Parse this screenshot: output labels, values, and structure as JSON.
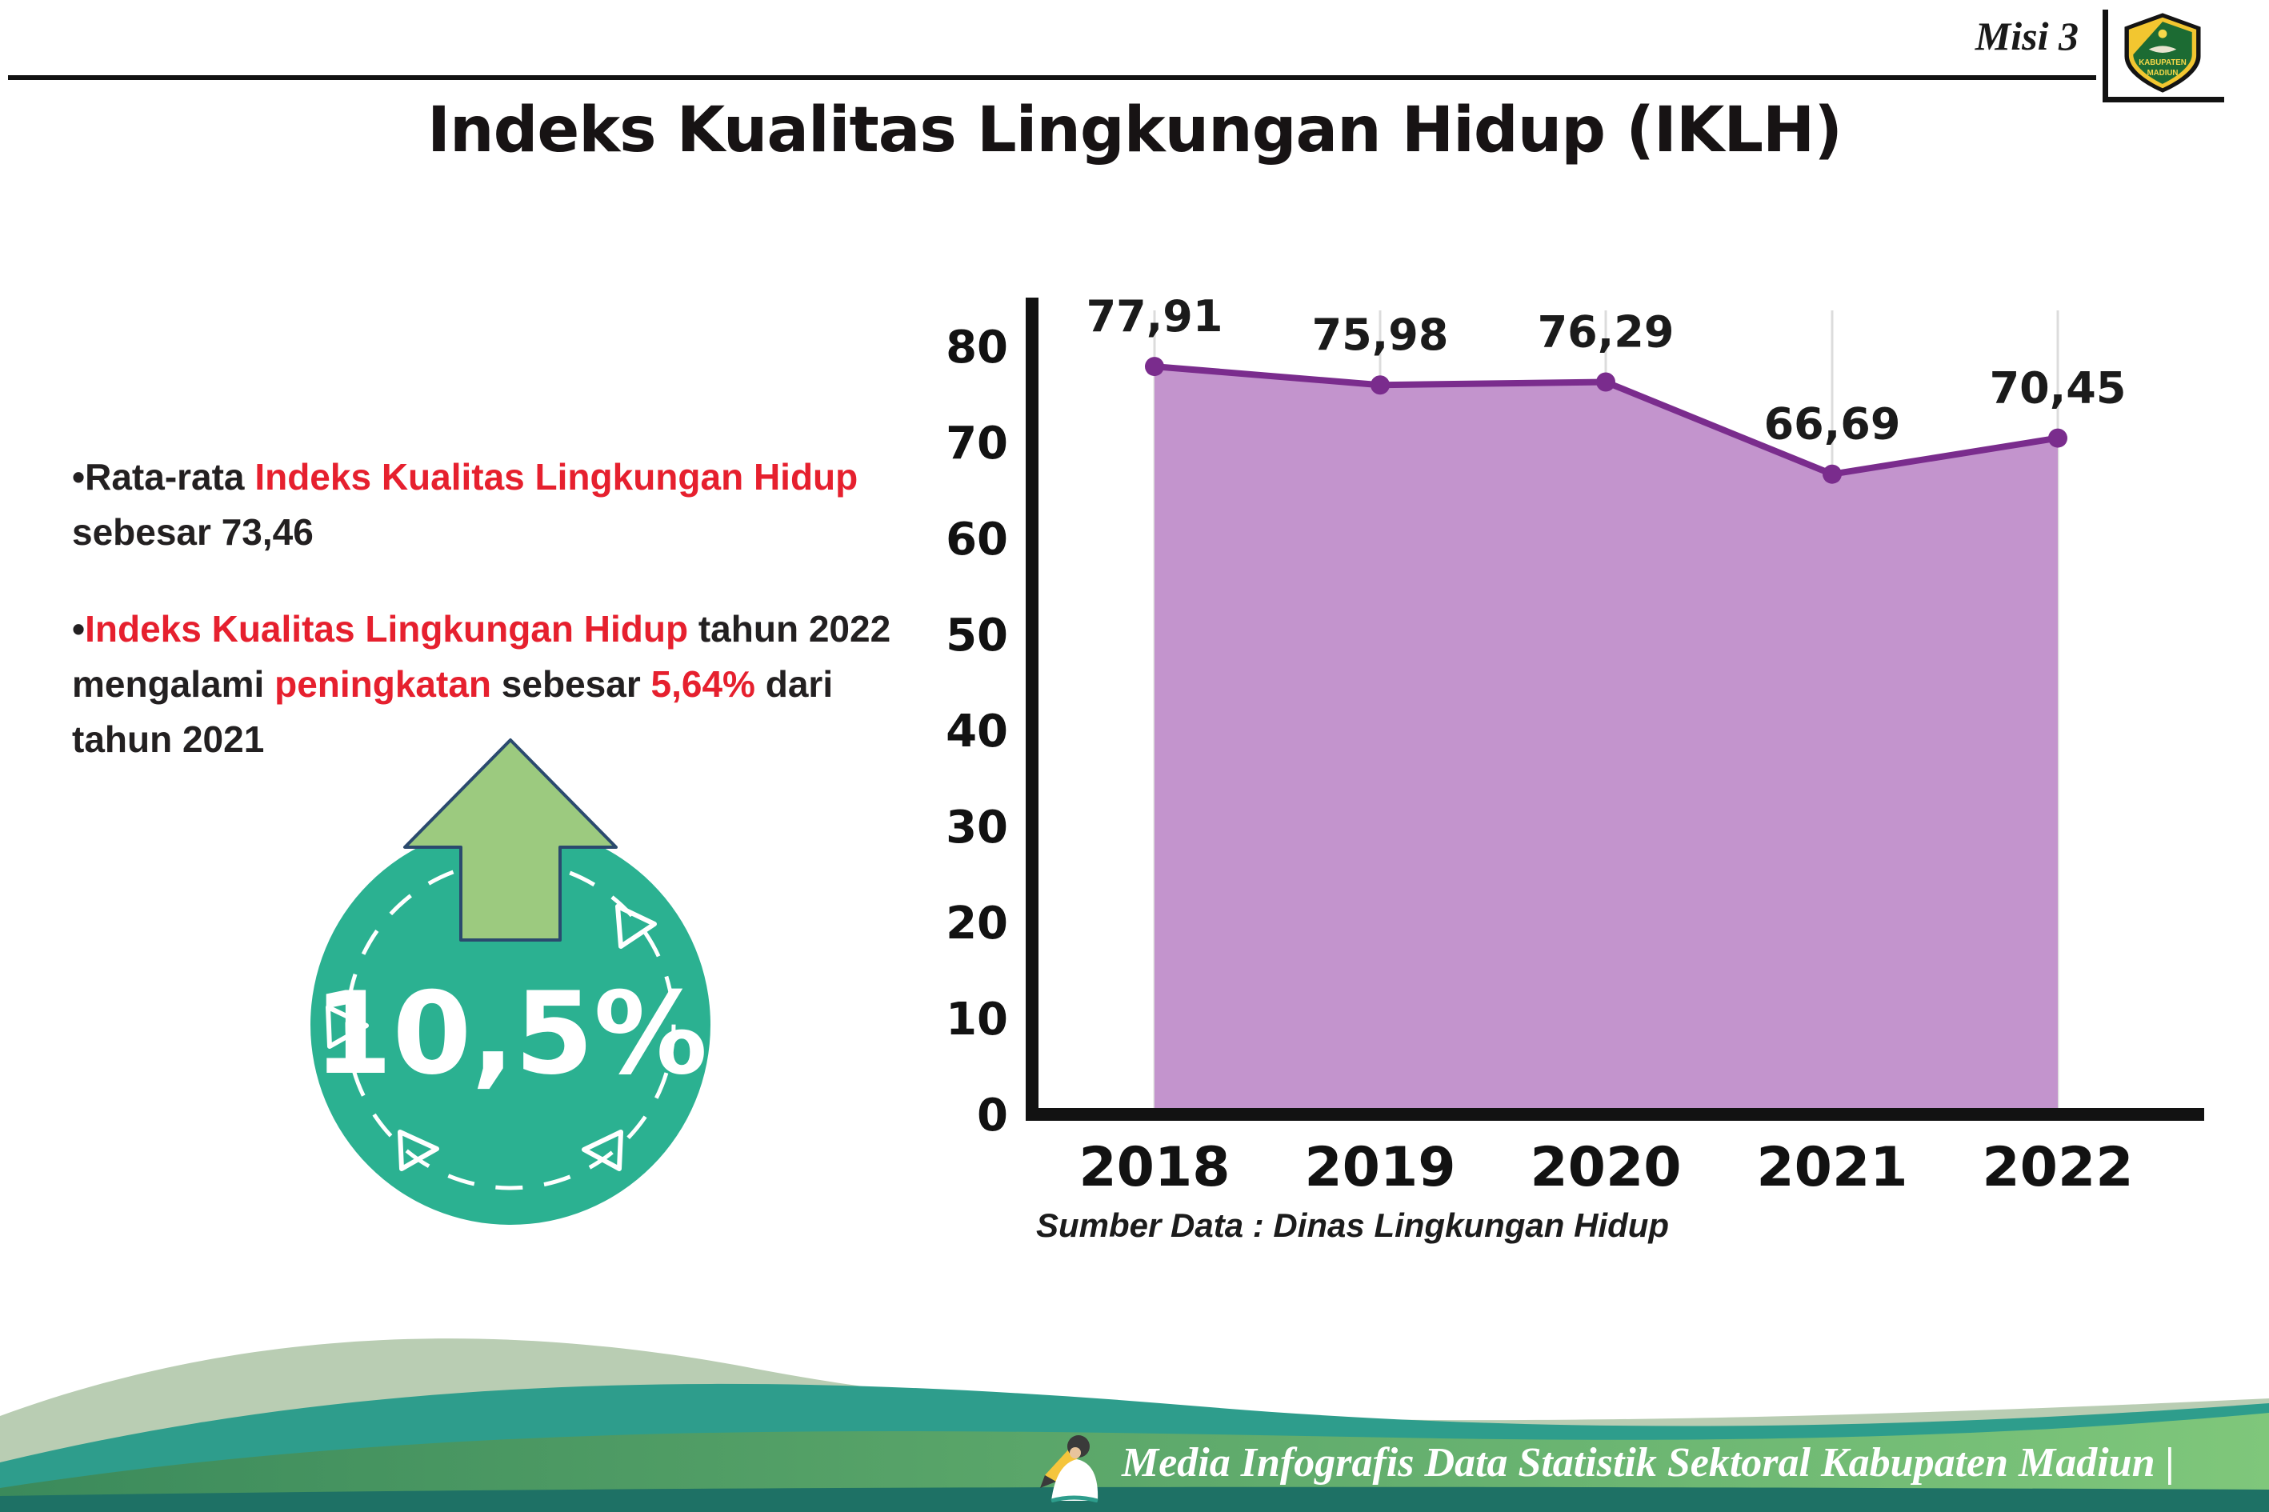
{
  "header": {
    "misi_label": "Misi 3",
    "title": "Indeks Kualitas Lingkungan Hidup (IKLH)",
    "logo": {
      "line1": "KABUPATEN",
      "line2": "MADIUN"
    }
  },
  "bullets": [
    {
      "bullet": "•",
      "parts": [
        {
          "text": "Rata-rata ",
          "style": "dark"
        },
        {
          "text": "Indeks Kualitas Lingkungan Hidup",
          "style": "red"
        },
        {
          "text": " sebesar 73,46",
          "style": "dark"
        }
      ]
    },
    {
      "bullet": "•",
      "parts": [
        {
          "text": "Indeks Kualitas Lingkungan Hidup",
          "style": "red"
        },
        {
          "text": " tahun 2022 mengalami ",
          "style": "dark"
        },
        {
          "text": "peningkatan",
          "style": "red"
        },
        {
          "text": " sebesar ",
          "style": "dark"
        },
        {
          "text": "5,64%",
          "style": "red"
        },
        {
          "text": " dari tahun 2021",
          "style": "dark"
        }
      ]
    }
  ],
  "badge": {
    "value": "10,5%",
    "colors": {
      "circle": "#2bb191",
      "arrow": "#9cca7f",
      "arrow_outline": "#2b4a6e"
    }
  },
  "chart_data": {
    "type": "area",
    "title": "Indeks Kualitas Lingkungan Hidup (IKLH)",
    "categories": [
      "2018",
      "2019",
      "2020",
      "2021",
      "2022"
    ],
    "values": [
      77.91,
      75.98,
      76.29,
      66.69,
      70.45
    ],
    "labels": [
      "77,91",
      "75,98",
      "76,29",
      "66,69",
      "70,45"
    ],
    "xlabel": "",
    "ylabel": "",
    "ylim": [
      0,
      80
    ],
    "yticks": [
      0,
      10,
      20,
      30,
      40,
      50,
      60,
      70,
      80
    ],
    "grid": "vertical-light",
    "legend": "none",
    "colors": {
      "line": "#7a2c8d",
      "fill": "#c394cd",
      "dot": "#7a2c8d",
      "axis": "#121212",
      "grid": "#dcdcdc"
    }
  },
  "source_note": "Sumber Data : Dinas Lingkungan Hidup",
  "footer": {
    "text": "Media Infografis Data Statistik Sektoral Kabupaten Madiun |"
  }
}
